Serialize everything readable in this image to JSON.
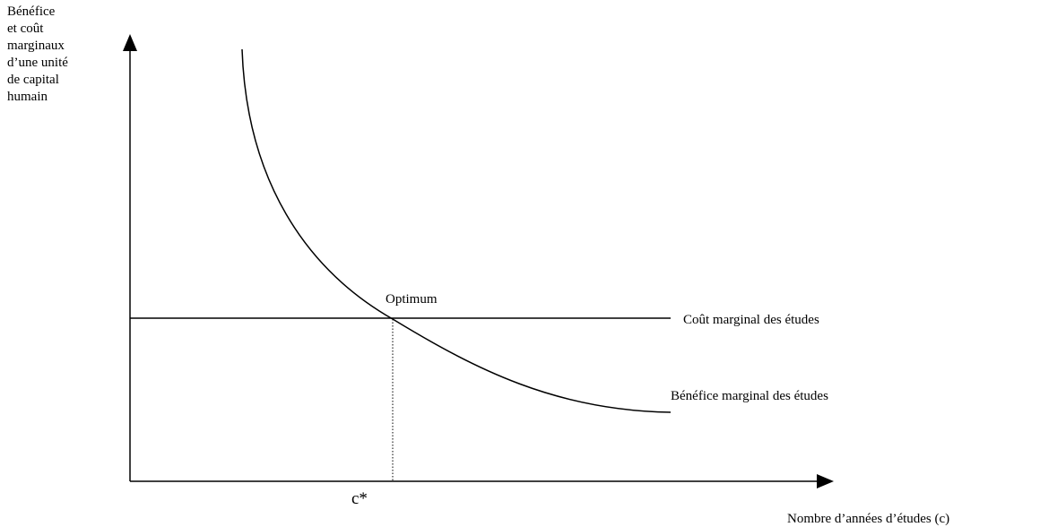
{
  "diagram": {
    "y_axis_label": [
      "Bénéfice",
      "et coût",
      "marginaux",
      "d’une unité",
      "de capital",
      "humain"
    ],
    "x_axis_label": "Nombre d’années d’études (c)",
    "optimum_label": "Optimum",
    "cost_curve_label": "Coût marginal des études",
    "benefit_curve_label": "Bénéfice marginal des études",
    "x_star_label": "c*"
  }
}
